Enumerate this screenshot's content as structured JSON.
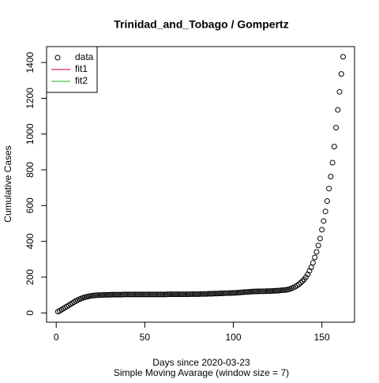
{
  "chart_data": {
    "type": "scatter",
    "title": "Trinidad_and_Tobago / Gompertz",
    "xlabel": "Days since 2020-03-23",
    "subtitle": "Simple Moving Avarage (window size = 7)",
    "ylabel": "Cumulative Cases",
    "x": [
      1,
      2,
      3,
      4,
      5,
      6,
      7,
      8,
      9,
      10,
      11,
      12,
      13,
      14,
      15,
      16,
      17,
      18,
      19,
      20,
      21,
      22,
      23,
      24,
      25,
      26,
      27,
      28,
      29,
      30,
      31,
      32,
      33,
      34,
      35,
      36,
      37,
      38,
      39,
      40,
      41,
      42,
      43,
      44,
      45,
      46,
      47,
      48,
      49,
      50,
      51,
      52,
      53,
      54,
      55,
      56,
      57,
      58,
      59,
      60,
      61,
      62,
      63,
      64,
      65,
      66,
      67,
      68,
      69,
      70,
      71,
      72,
      73,
      74,
      75,
      76,
      77,
      78,
      79,
      80,
      81,
      82,
      83,
      84,
      85,
      86,
      87,
      88,
      89,
      90,
      91,
      92,
      93,
      94,
      95,
      96,
      97,
      98,
      99,
      100,
      101,
      102,
      103,
      104,
      105,
      106,
      107,
      108,
      109,
      110,
      111,
      112,
      113,
      114,
      115,
      116,
      117,
      118,
      119,
      120,
      121,
      122,
      123,
      124,
      125,
      126,
      127,
      128,
      129,
      130,
      131,
      132,
      133,
      134,
      135,
      136,
      137,
      138,
      139,
      140,
      141,
      142,
      143,
      144,
      145,
      146,
      147,
      148,
      149,
      150,
      151,
      152,
      153,
      154,
      155,
      156,
      157,
      158,
      159,
      160,
      161,
      162
    ],
    "series": [
      {
        "name": "data",
        "color": "#000000",
        "values": [
          7,
          12,
          18,
          24,
          30,
          36,
          42,
          48,
          54,
          60,
          66,
          71,
          76,
          80,
          84,
          87,
          90,
          92,
          94,
          96,
          97,
          98,
          99,
          99,
          100,
          100,
          101,
          101,
          101,
          101,
          102,
          102,
          102,
          102,
          102,
          102,
          102,
          103,
          103,
          103,
          103,
          103,
          103,
          103,
          103,
          103,
          103,
          103,
          103,
          103,
          103,
          103,
          103,
          103,
          103,
          103,
          103,
          103,
          103,
          103,
          103,
          103,
          104,
          104,
          104,
          104,
          104,
          104,
          104,
          104,
          104,
          104,
          104,
          104,
          104,
          105,
          105,
          105,
          105,
          105,
          105,
          106,
          106,
          106,
          106,
          107,
          107,
          107,
          108,
          108,
          108,
          109,
          109,
          109,
          110,
          110,
          110,
          111,
          111,
          112,
          112,
          113,
          113,
          114,
          115,
          116,
          117,
          117,
          118,
          119,
          119,
          120,
          120,
          120,
          121,
          121,
          121,
          121,
          122,
          122,
          122,
          123,
          123,
          124,
          124,
          125,
          126,
          127,
          128,
          129,
          131,
          134,
          138,
          142,
          147,
          153,
          160,
          168,
          177,
          187,
          200,
          215,
          235,
          255,
          280,
          310,
          341,
          377,
          416,
          465,
          514,
          567,
          625,
          695,
          762,
          840,
          930,
          1036,
          1135,
          1236,
          1336,
          1432
        ]
      }
    ],
    "legend": [
      {
        "name": "data",
        "color": "#000000",
        "marker": "circle"
      },
      {
        "name": "fit1",
        "color": "#e0245e",
        "marker": "line"
      },
      {
        "name": "fit2",
        "color": "#4dbd4d",
        "marker": "line"
      }
    ],
    "legend_position": "topleft",
    "xlim": [
      -5.44,
      168.44
    ],
    "xticks": [
      0,
      50,
      100,
      150
    ],
    "ylim": [
      -52,
      1489
    ],
    "yticks": [
      0,
      200,
      400,
      600,
      800,
      1000,
      1200,
      1400
    ]
  }
}
